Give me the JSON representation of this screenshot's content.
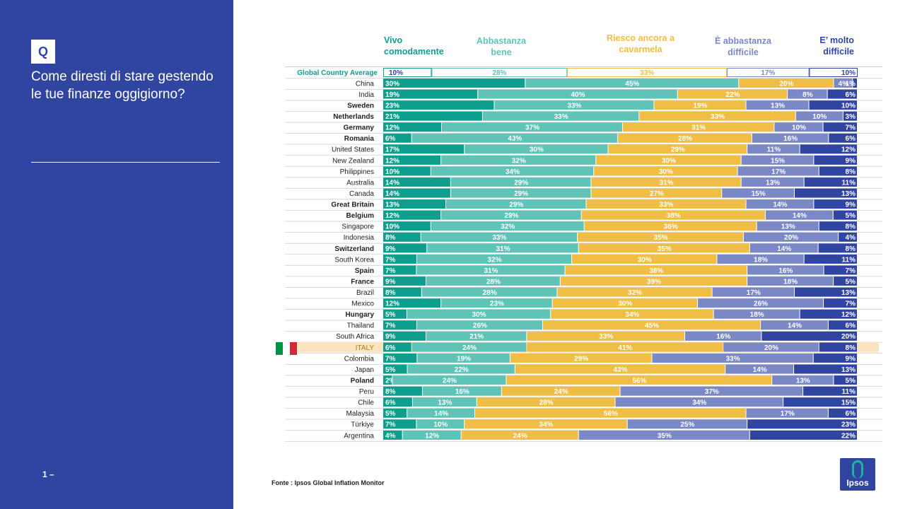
{
  "panel": {
    "q_label": "Q",
    "question": "Come diresti di stare gestendo le tue finanze oggigiorno?",
    "page_number": "1 –"
  },
  "source": "Fonte : Ipsos Global Inflation Monitor",
  "logo_text": "Ipsos",
  "colors": {
    "panel": "#2f45a0",
    "c1": "#0e9e8e",
    "c2": "#5fc3b8",
    "c3": "#f0be45",
    "c4": "#7b88c6",
    "c5": "#2f45a0",
    "highlight": "#f8e4bf",
    "flag_green": "#009246",
    "flag_red": "#ce2b37"
  },
  "chart_data": {
    "type": "bar",
    "orientation": "horizontal-stacked",
    "title": "Come diresti di stare gestendo le tue finanze oggigiorno?",
    "series_names": [
      "Vivo comodamente",
      "Abbastanza bene",
      "Riesco ancora a cavarmela",
      "È abbastanza difficile",
      "E’ molto difficile"
    ],
    "global": {
      "label": "Global Country Average",
      "values": [
        10,
        28,
        33,
        17,
        10
      ]
    },
    "rows": [
      {
        "label": "China",
        "values": [
          30,
          45,
          20,
          4,
          1
        ],
        "bold": false,
        "labels": [
          "30%",
          "45%",
          "20%",
          "4%",
          "1%"
        ]
      },
      {
        "label": "India",
        "values": [
          19,
          40,
          22,
          8,
          6
        ],
        "bold": false
      },
      {
        "label": "Sweden",
        "values": [
          23,
          33,
          19,
          13,
          10
        ],
        "bold": true
      },
      {
        "label": "Netherlands",
        "values": [
          21,
          33,
          33,
          10,
          3
        ],
        "bold": true
      },
      {
        "label": "Germany",
        "values": [
          12,
          37,
          31,
          10,
          7
        ],
        "bold": true
      },
      {
        "label": "Romania",
        "values": [
          6,
          43,
          28,
          16,
          6
        ],
        "bold": true
      },
      {
        "label": "United States",
        "values": [
          17,
          30,
          29,
          11,
          12
        ],
        "bold": false
      },
      {
        "label": "New Zealand",
        "values": [
          12,
          32,
          30,
          15,
          9
        ],
        "bold": false
      },
      {
        "label": "Philippines",
        "values": [
          10,
          34,
          30,
          17,
          8
        ],
        "bold": false
      },
      {
        "label": "Australia",
        "values": [
          14,
          29,
          31,
          13,
          11
        ],
        "bold": false
      },
      {
        "label": "Canada",
        "values": [
          14,
          29,
          27,
          15,
          13
        ],
        "bold": false
      },
      {
        "label": "Great Britain",
        "values": [
          13,
          29,
          33,
          14,
          9
        ],
        "bold": true
      },
      {
        "label": "Belgium",
        "values": [
          12,
          29,
          38,
          14,
          5
        ],
        "bold": true
      },
      {
        "label": "Singapore",
        "values": [
          10,
          32,
          36,
          13,
          8
        ],
        "bold": false
      },
      {
        "label": "Indonesia",
        "values": [
          8,
          33,
          35,
          20,
          4
        ],
        "bold": false
      },
      {
        "label": "Switzerland",
        "values": [
          9,
          31,
          35,
          14,
          8
        ],
        "bold": true
      },
      {
        "label": "South Korea",
        "values": [
          7,
          32,
          30,
          18,
          11
        ],
        "bold": false
      },
      {
        "label": "Spain",
        "values": [
          7,
          31,
          38,
          16,
          7
        ],
        "bold": true
      },
      {
        "label": "France",
        "values": [
          9,
          28,
          39,
          18,
          5
        ],
        "bold": true
      },
      {
        "label": "Brazil",
        "values": [
          8,
          28,
          32,
          17,
          13
        ],
        "bold": false
      },
      {
        "label": "Mexico",
        "values": [
          12,
          23,
          30,
          26,
          7
        ],
        "bold": false
      },
      {
        "label": "Hungary",
        "values": [
          5,
          30,
          34,
          18,
          12
        ],
        "bold": true
      },
      {
        "label": "Thailand",
        "values": [
          7,
          26,
          45,
          14,
          6
        ],
        "bold": false
      },
      {
        "label": "South Africa",
        "values": [
          9,
          21,
          33,
          16,
          20
        ],
        "bold": false
      },
      {
        "label": "ITALY",
        "values": [
          6,
          24,
          41,
          20,
          8
        ],
        "bold": false,
        "highlight": true
      },
      {
        "label": "Colombia",
        "values": [
          7,
          19,
          29,
          33,
          9
        ],
        "bold": false
      },
      {
        "label": "Japan",
        "values": [
          5,
          22,
          43,
          14,
          13
        ],
        "bold": false
      },
      {
        "label": "Poland",
        "values": [
          2,
          24,
          56,
          13,
          5
        ],
        "bold": true
      },
      {
        "label": "Peru",
        "values": [
          8,
          16,
          24,
          37,
          11
        ],
        "bold": false
      },
      {
        "label": "Chile",
        "values": [
          6,
          13,
          28,
          34,
          15
        ],
        "bold": false
      },
      {
        "label": "Malaysia",
        "values": [
          5,
          14,
          56,
          17,
          6
        ],
        "bold": false
      },
      {
        "label": "Türkiye",
        "values": [
          7,
          10,
          34,
          25,
          23
        ],
        "bold": false
      },
      {
        "label": "Argentina",
        "values": [
          4,
          12,
          24,
          35,
          22
        ],
        "bold": false
      }
    ]
  }
}
